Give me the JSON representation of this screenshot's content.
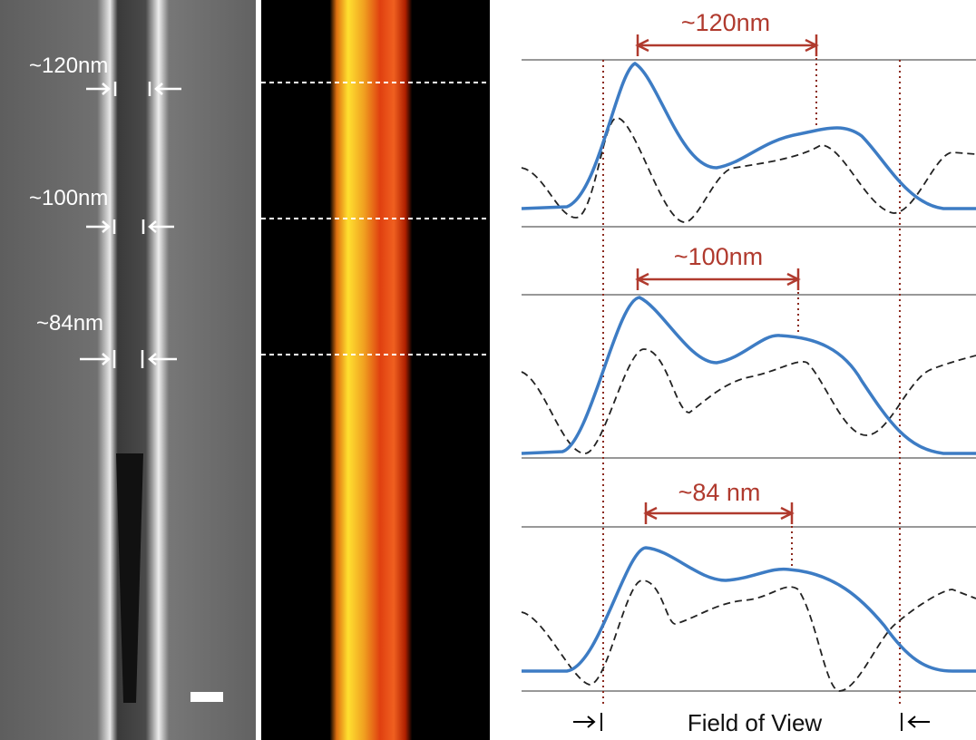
{
  "left_panel": {
    "labels": [
      "~120nm",
      "~100nm",
      "~84nm"
    ]
  },
  "plots": [
    {
      "label": "~120nm"
    },
    {
      "label": "~100nm"
    },
    {
      "label": "~84 nm"
    }
  ],
  "footer": "Field of View"
}
